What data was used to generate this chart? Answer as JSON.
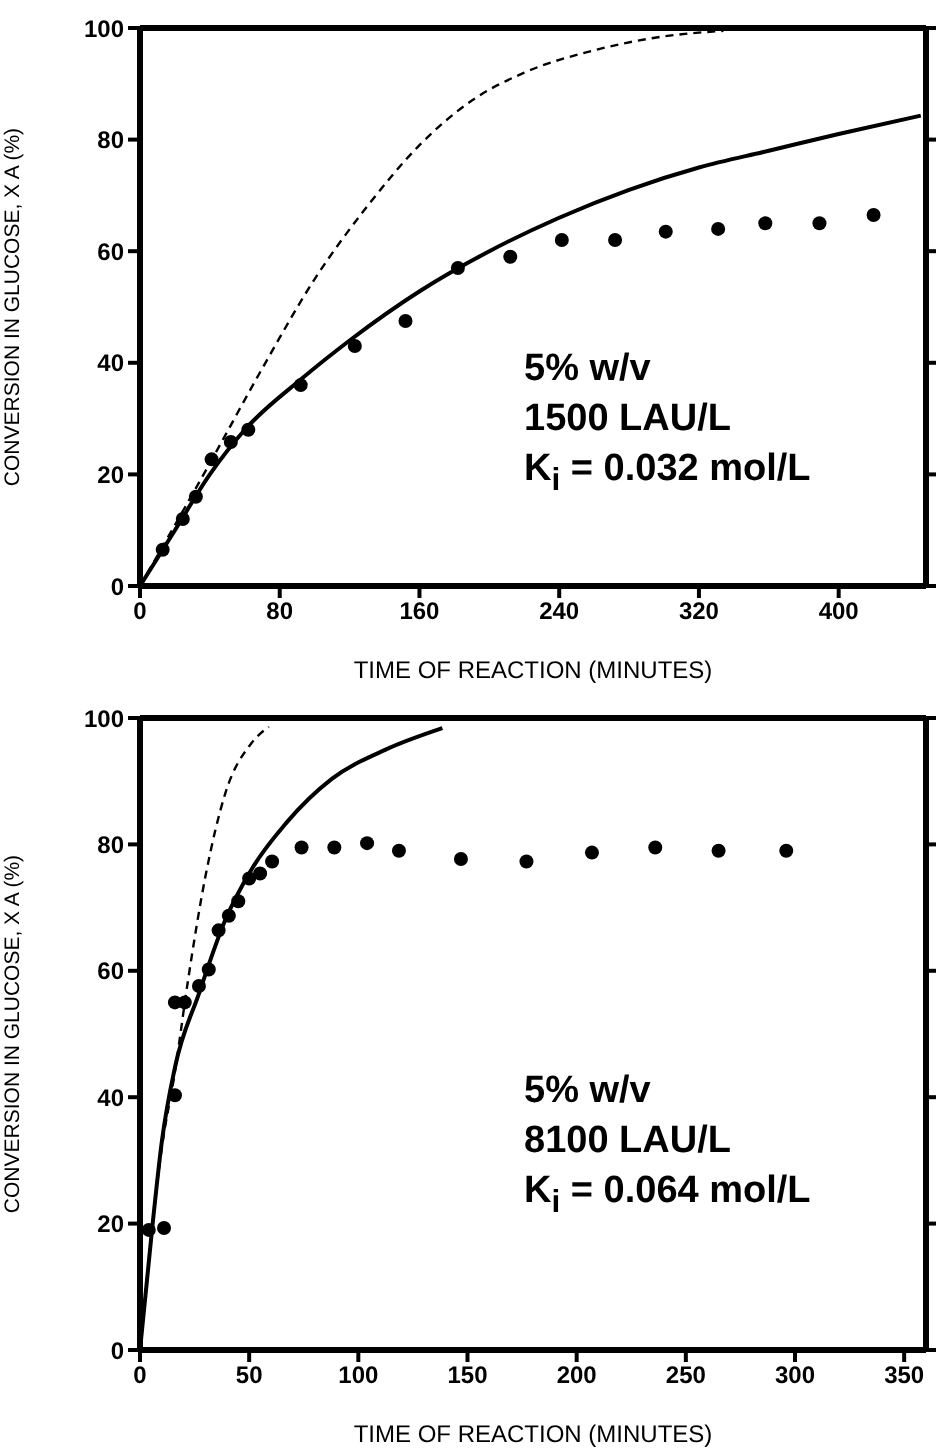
{
  "chart_data": [
    {
      "type": "scatter",
      "xlabel": "TIME OF REACTION (MINUTES)",
      "ylabel": "CONVERSION IN GLUCOSE, X A (%)",
      "xlim": [
        0,
        450
      ],
      "xticks": [
        0,
        80,
        160,
        240,
        320,
        400
      ],
      "ylim": [
        0,
        100
      ],
      "yticks": [
        0,
        20,
        40,
        60,
        80,
        100
      ],
      "annotations": [
        "5% w/v",
        "1500 LAU/L",
        "K$_{i}$ = 0.032 mol/L"
      ],
      "series": [
        {
          "color": "#000000",
          "marker": "circle",
          "x": [
            13,
            24.5,
            32,
            41,
            52,
            62,
            92,
            123,
            152,
            182,
            212,
            241.5,
            272,
            301,
            331,
            358,
            389,
            420
          ],
          "values": [
            6.5,
            12,
            16,
            22.7,
            25.8,
            28,
            36,
            43,
            47.5,
            57,
            59,
            62,
            62,
            63.5,
            64,
            65,
            65,
            66.5
          ]
        },
        {
          "type": "line",
          "color": "#000000",
          "line_style": "solid",
          "marker": "none",
          "x": [
            0,
            20,
            40,
            60,
            92,
            120,
            161,
            200,
            240,
            280,
            320,
            360,
            400,
            447
          ],
          "values": [
            0,
            10,
            20,
            28,
            37,
            44,
            53,
            60,
            66,
            71,
            75,
            78,
            81,
            84.3
          ]
        },
        {
          "type": "line",
          "color": "#000000",
          "line_style": "dashed",
          "marker": "none",
          "x": [
            0,
            40,
            70,
            100,
            130,
            160,
            190,
            220,
            260,
            300,
            334
          ],
          "values": [
            0,
            22,
            39,
            55,
            68,
            79,
            87,
            92,
            96,
            98.5,
            99.5
          ]
        }
      ]
    },
    {
      "type": "scatter",
      "xlabel": "TIME OF REACTION (MINUTES)",
      "ylabel": "CONVERSION IN GLUCOSE, X A (%)",
      "xlim": [
        0,
        360
      ],
      "xticks": [
        0,
        50,
        100,
        150,
        200,
        250,
        300,
        350
      ],
      "ylim": [
        0,
        100
      ],
      "yticks": [
        0,
        20,
        40,
        60,
        80,
        100
      ],
      "annotations": [
        "5% w/v",
        "8100 LAU/L",
        "K$_{i}$ = 0.064 mol/L"
      ],
      "series": [
        {
          "color": "#000000",
          "marker": "circle",
          "x": [
            4,
            11,
            16,
            16,
            20.5,
            27,
            31.5,
            36,
            40.7,
            45,
            50,
            55,
            60.5,
            74,
            89,
            104,
            118.6,
            147,
            177,
            207,
            236,
            265,
            296
          ],
          "values": [
            19,
            19.3,
            40.3,
            55,
            55,
            57.6,
            60.2,
            66.4,
            68.7,
            71,
            74.6,
            75.4,
            77.3,
            79.5,
            79.5,
            80.2,
            79,
            77.7,
            77.3,
            78.7,
            79.5,
            79,
            79
          ]
        },
        {
          "type": "line",
          "color": "#000000",
          "line_style": "solid",
          "marker": "none",
          "x": [
            0,
            5.5,
            10,
            16,
            27,
            39,
            51,
            67,
            88,
            112.5,
            138.5
          ],
          "values": [
            0,
            19,
            33,
            44.7,
            56.4,
            68,
            76,
            83.4,
            90.4,
            95,
            98.4
          ]
        },
        {
          "type": "line",
          "color": "#000000",
          "line_style": "dashed",
          "marker": "none",
          "x": [
            0,
            10,
            16,
            22,
            30,
            39,
            51,
            59
          ],
          "values": [
            0,
            32,
            44,
            58.5,
            75,
            88,
            96,
            98.6
          ]
        }
      ]
    }
  ]
}
